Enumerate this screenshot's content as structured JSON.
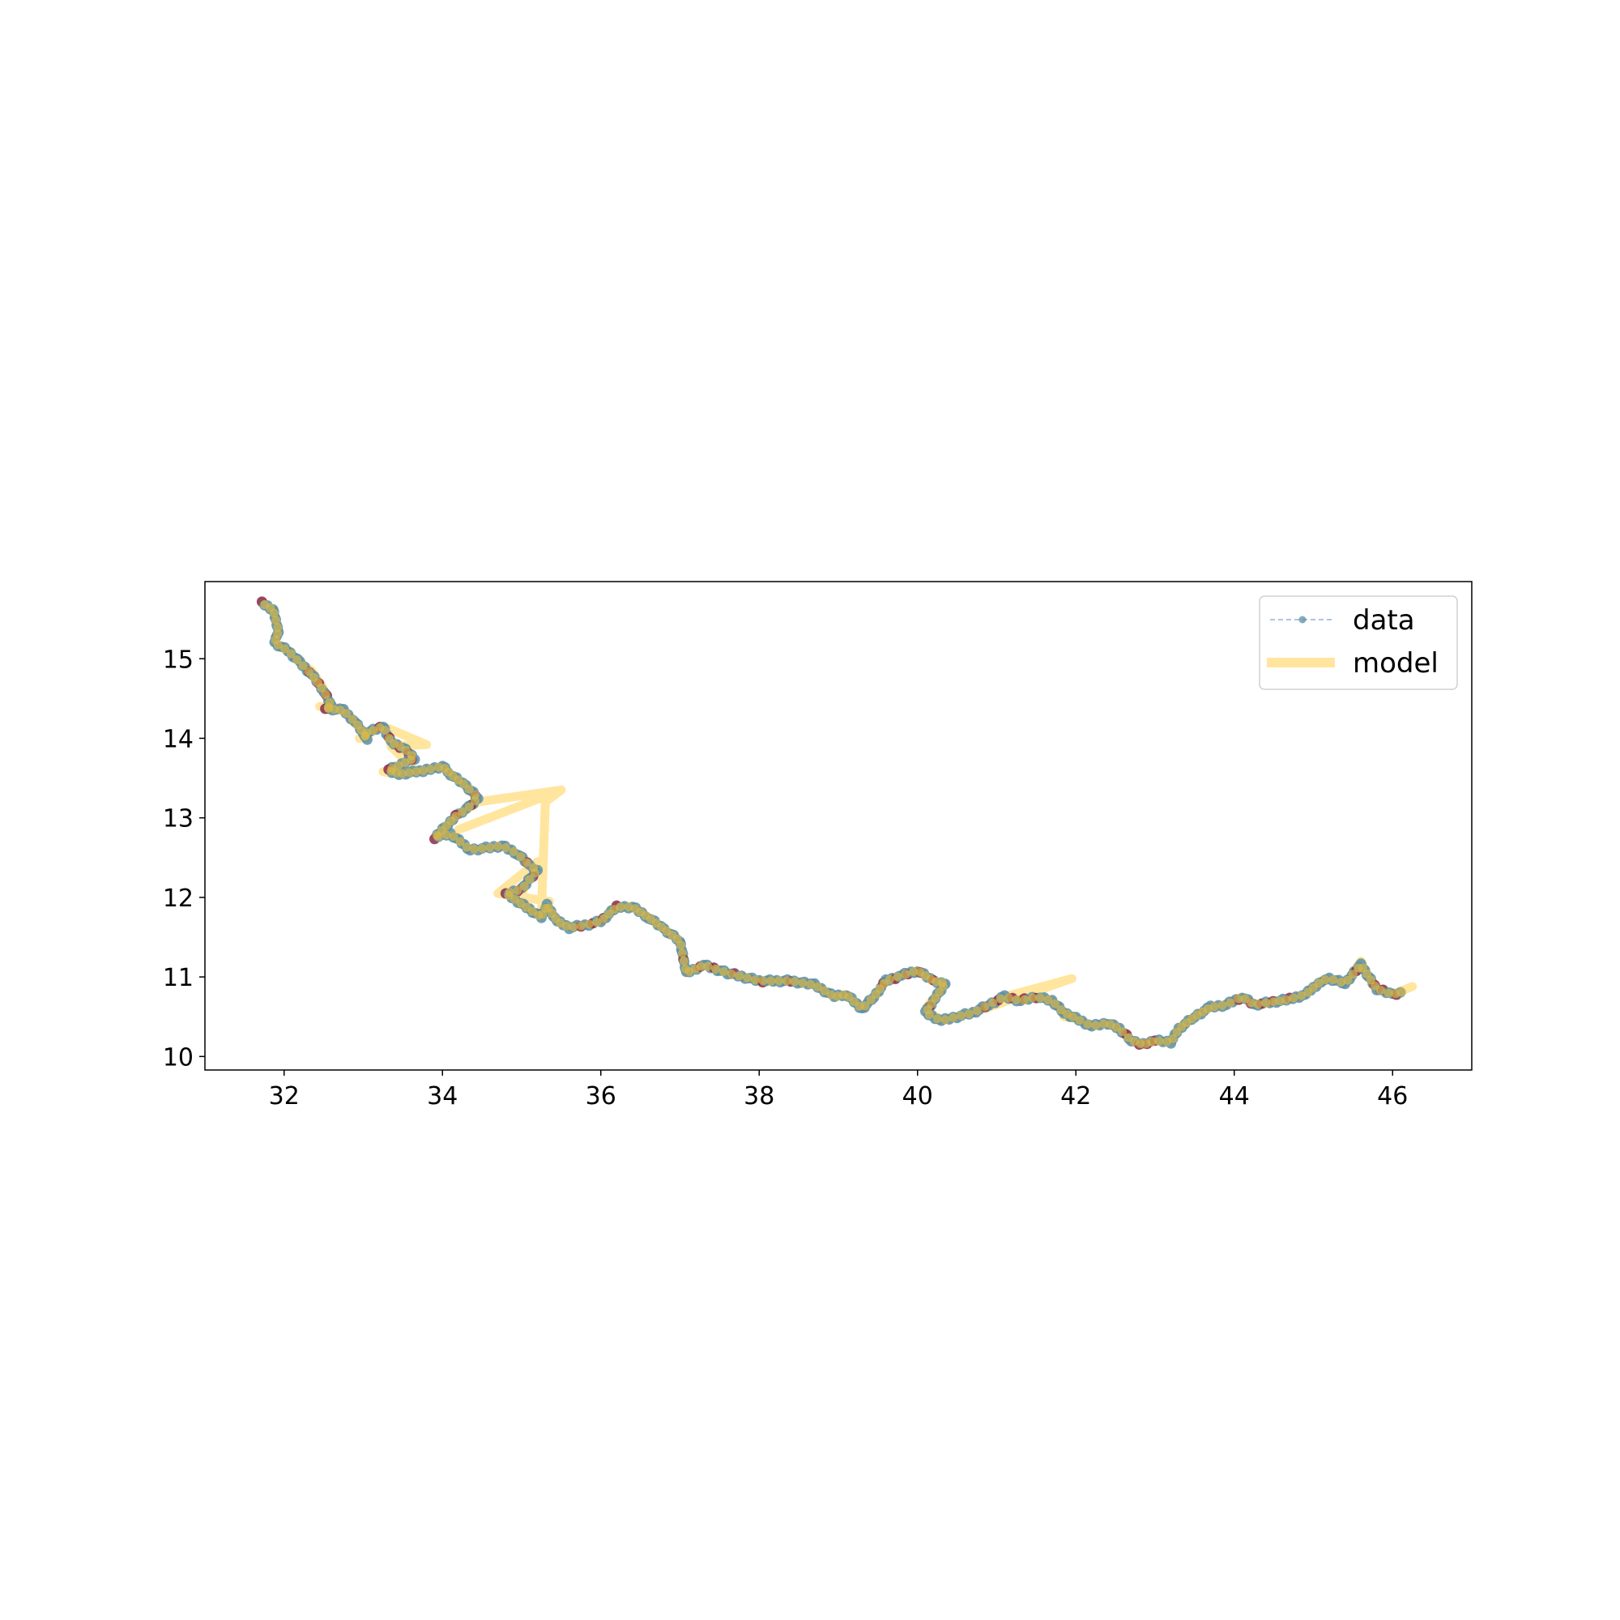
{
  "chart_data": {
    "type": "line",
    "title": "",
    "xlabel": "",
    "ylabel": "",
    "xlim": [
      31.0,
      47.0
    ],
    "ylim": [
      9.83,
      15.97
    ],
    "xticks": [
      32,
      34,
      36,
      38,
      40,
      42,
      44,
      46
    ],
    "yticks": [
      10,
      11,
      12,
      13,
      14,
      15
    ],
    "grid": false,
    "legend_position": "top-right",
    "colors": {
      "data_line": "#8fb3d6",
      "data_marker_a": "#5b8fa8",
      "data_marker_b": "#8a2a4a",
      "model": "#ffd45e",
      "model_overlay": "#d9b84a"
    },
    "series": [
      {
        "name": "data",
        "style": "dashed-line-with-markers",
        "x": [
          31.72,
          31.86,
          31.93,
          31.88,
          32.05,
          32.2,
          32.35,
          32.5,
          32.6,
          32.52,
          32.75,
          32.9,
          33.05,
          33.0,
          33.25,
          33.35,
          33.5,
          33.65,
          33.32,
          33.45,
          33.8,
          34.0,
          34.1,
          34.3,
          34.45,
          34.3,
          34.2,
          33.9,
          34.1,
          34.35,
          34.55,
          34.75,
          34.95,
          35.1,
          35.2,
          35.0,
          34.8,
          34.95,
          35.1,
          35.25,
          35.32,
          35.45,
          35.6,
          35.8,
          36.0,
          36.2,
          36.4,
          36.6,
          36.8,
          37.0,
          37.08,
          37.3,
          37.6,
          38.0,
          38.4,
          38.7,
          38.95,
          39.1,
          39.3,
          39.45,
          39.6,
          39.8,
          40.0,
          40.2,
          40.35,
          40.1,
          40.3,
          40.5,
          40.7,
          40.9,
          41.1,
          41.3,
          41.5,
          41.7,
          41.85,
          42.0,
          42.2,
          42.4,
          42.55,
          42.7,
          42.85,
          43.0,
          43.2,
          43.3,
          43.5,
          43.7,
          43.9,
          44.1,
          44.25,
          44.45,
          44.7,
          44.9,
          45.1,
          45.2,
          45.4,
          45.6,
          45.7,
          45.8,
          46.0,
          46.15
        ],
        "y": [
          15.7,
          15.62,
          15.35,
          15.2,
          15.1,
          14.95,
          14.8,
          14.6,
          14.4,
          14.38,
          14.35,
          14.2,
          14.0,
          14.05,
          14.15,
          13.95,
          13.88,
          13.75,
          13.6,
          13.55,
          13.6,
          13.65,
          13.55,
          13.4,
          13.25,
          13.1,
          13.05,
          12.75,
          12.8,
          12.6,
          12.62,
          12.65,
          12.55,
          12.4,
          12.35,
          12.1,
          12.05,
          11.95,
          11.85,
          11.75,
          11.9,
          11.7,
          11.62,
          11.65,
          11.7,
          11.88,
          11.88,
          11.75,
          11.6,
          11.45,
          11.05,
          11.15,
          11.05,
          10.95,
          10.95,
          10.9,
          10.75,
          10.78,
          10.6,
          10.75,
          10.95,
          11.02,
          11.08,
          10.95,
          10.92,
          10.55,
          10.45,
          10.5,
          10.55,
          10.65,
          10.75,
          10.7,
          10.75,
          10.7,
          10.55,
          10.48,
          10.38,
          10.42,
          10.35,
          10.2,
          10.15,
          10.2,
          10.18,
          10.35,
          10.5,
          10.62,
          10.65,
          10.75,
          10.65,
          10.68,
          10.72,
          10.78,
          10.95,
          10.98,
          10.92,
          11.15,
          11.0,
          10.85,
          10.78,
          10.82
        ]
      },
      {
        "name": "model",
        "style": "thick-line",
        "x": [
          31.72,
          31.86,
          31.93,
          31.88,
          32.05,
          32.2,
          32.35,
          32.5,
          32.6,
          32.45,
          32.75,
          32.9,
          33.05,
          32.95,
          33.25,
          33.8,
          33.35,
          33.5,
          33.65,
          33.25,
          33.45,
          33.8,
          34.0,
          34.1,
          34.3,
          34.45,
          34.3,
          34.45,
          35.5,
          34.2,
          35.5,
          35.3,
          35.25,
          35.35,
          34.7,
          35.2,
          35.0,
          34.95,
          35.1,
          35.25,
          35.32,
          35.45,
          35.6,
          35.8,
          36.0,
          36.2,
          36.4,
          36.6,
          36.8,
          37.0,
          37.08,
          37.3,
          37.6,
          38.0,
          38.4,
          38.7,
          38.95,
          39.1,
          39.3,
          39.45,
          39.6,
          39.8,
          40.0,
          40.2,
          40.35,
          40.1,
          40.3,
          40.5,
          40.7,
          41.95,
          41.1,
          41.3,
          41.5,
          41.7,
          41.85,
          41.85,
          42.0,
          42.2,
          42.4,
          42.55,
          42.7,
          42.85,
          43.0,
          43.2,
          43.3,
          43.5,
          43.7,
          43.9,
          44.1,
          44.25,
          44.45,
          44.7,
          44.9,
          45.1,
          45.2,
          45.4,
          45.6,
          45.7,
          45.8,
          46.0,
          46.25
        ],
        "y": [
          15.72,
          15.6,
          15.35,
          15.2,
          15.1,
          14.95,
          14.85,
          14.62,
          14.4,
          14.4,
          14.35,
          14.2,
          14.0,
          14.0,
          14.15,
          13.92,
          13.9,
          13.75,
          13.6,
          13.58,
          13.55,
          13.6,
          13.65,
          13.55,
          13.4,
          13.25,
          13.1,
          13.2,
          13.35,
          12.85,
          13.35,
          13.2,
          11.8,
          11.95,
          12.05,
          12.45,
          12.05,
          11.95,
          11.85,
          11.75,
          11.9,
          11.7,
          11.62,
          11.65,
          11.7,
          11.88,
          11.88,
          11.75,
          11.6,
          11.45,
          11.05,
          11.15,
          11.05,
          10.95,
          10.95,
          10.9,
          10.75,
          10.78,
          10.6,
          10.75,
          10.95,
          11.02,
          11.08,
          10.95,
          10.92,
          10.6,
          10.45,
          10.5,
          10.55,
          10.98,
          10.75,
          10.7,
          10.75,
          10.7,
          10.55,
          10.5,
          10.48,
          10.38,
          10.42,
          10.35,
          10.2,
          10.15,
          10.2,
          10.18,
          10.35,
          10.5,
          10.62,
          10.65,
          10.75,
          10.65,
          10.68,
          10.72,
          10.78,
          10.95,
          10.98,
          10.92,
          11.2,
          11.0,
          10.85,
          10.78,
          10.88
        ]
      }
    ]
  }
}
